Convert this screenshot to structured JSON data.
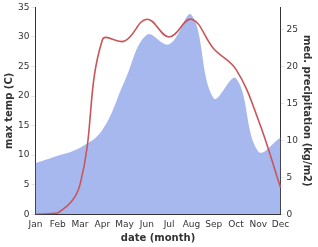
{
  "chart_data": {
    "type": "line",
    "x_label": "date (month)",
    "y_label": "max temp (C)",
    "y2_label": "med. precipitation (kg/m2)",
    "categories": [
      "Jan",
      "Feb",
      "Mar",
      "Apr",
      "May",
      "Jun",
      "Jul",
      "Aug",
      "Sep",
      "Oct",
      "Nov",
      "Dec"
    ],
    "series": [
      {
        "type": "area",
        "color": "#a7b8ee",
        "axis": "y2",
        "values": [
          6.9,
          7.9,
          9.0,
          11.4,
          18.0,
          24.3,
          23.0,
          27.0,
          15.7,
          18.4,
          8.5,
          10.4
        ]
      },
      {
        "type": "line",
        "color": "#c9555a",
        "axis": "y",
        "values": [
          0,
          0.2,
          5,
          29.5,
          29.3,
          33,
          30,
          33,
          28,
          24.5,
          16,
          4.5
        ]
      }
    ],
    "ylim": [
      0,
      35
    ],
    "yticks": [
      0,
      5,
      10,
      15,
      20,
      25,
      30,
      35
    ],
    "y2lim": [
      0,
      28
    ],
    "y2ticks": [
      0,
      5,
      10,
      15,
      20,
      25
    ],
    "grid": false
  }
}
